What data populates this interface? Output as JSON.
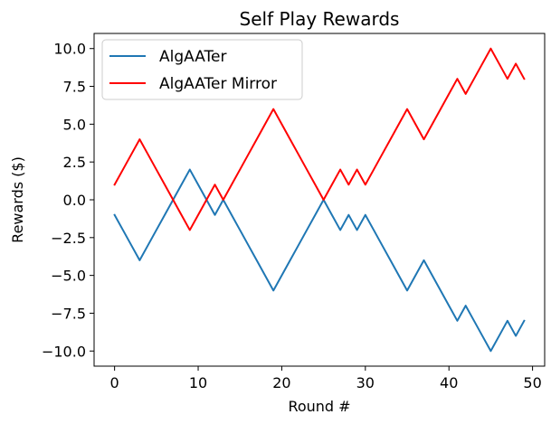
{
  "chart_data": {
    "type": "line",
    "title": "Self Play Rewards",
    "xlabel": "Round #",
    "ylabel": "Rewards ($)",
    "xlim": [
      -2.45,
      51.45
    ],
    "ylim": [
      -11.0,
      11.0
    ],
    "xticks": [
      0,
      10,
      20,
      30,
      40,
      50
    ],
    "xtick_labels": [
      "0",
      "10",
      "20",
      "30",
      "40",
      "50"
    ],
    "yticks": [
      -10.0,
      -7.5,
      -5.0,
      -2.5,
      0.0,
      2.5,
      5.0,
      7.5,
      10.0
    ],
    "ytick_labels": [
      "−10.0",
      "−7.5",
      "−5.0",
      "−2.5",
      "0.0",
      "2.5",
      "5.0",
      "7.5",
      "10.0"
    ],
    "grid": false,
    "legend_position": "top-left",
    "x": [
      0,
      1,
      2,
      3,
      4,
      5,
      6,
      7,
      8,
      9,
      10,
      11,
      12,
      13,
      14,
      15,
      16,
      17,
      18,
      19,
      20,
      21,
      22,
      23,
      24,
      25,
      26,
      27,
      28,
      29,
      30,
      31,
      32,
      33,
      34,
      35,
      36,
      37,
      38,
      39,
      40,
      41,
      42,
      43,
      44,
      45,
      46,
      47,
      48,
      49
    ],
    "series": [
      {
        "name": "AlgAATer",
        "color": "#1f77b4",
        "values": [
          -1,
          -2,
          -3,
          -4,
          -3,
          -2,
          -1,
          0,
          1,
          2,
          1,
          0,
          -1,
          0,
          -1,
          -2,
          -3,
          -4,
          -5,
          -6,
          -5,
          -4,
          -3,
          -2,
          -1,
          0,
          -1,
          -2,
          -1,
          -2,
          -1,
          -2,
          -3,
          -4,
          -5,
          -6,
          -5,
          -4,
          -5,
          -6,
          -7,
          -8,
          -7,
          -8,
          -9,
          -10,
          -9,
          -8,
          -9,
          -8
        ]
      },
      {
        "name": "AlgAATer Mirror",
        "color": "#ff0000",
        "values": [
          1,
          2,
          3,
          4,
          3,
          2,
          1,
          0,
          -1,
          -2,
          -1,
          0,
          1,
          0,
          1,
          2,
          3,
          4,
          5,
          6,
          5,
          4,
          3,
          2,
          1,
          0,
          1,
          2,
          1,
          2,
          1,
          2,
          3,
          4,
          5,
          6,
          5,
          4,
          5,
          6,
          7,
          8,
          7,
          8,
          9,
          10,
          9,
          8,
          9,
          8
        ]
      }
    ]
  }
}
